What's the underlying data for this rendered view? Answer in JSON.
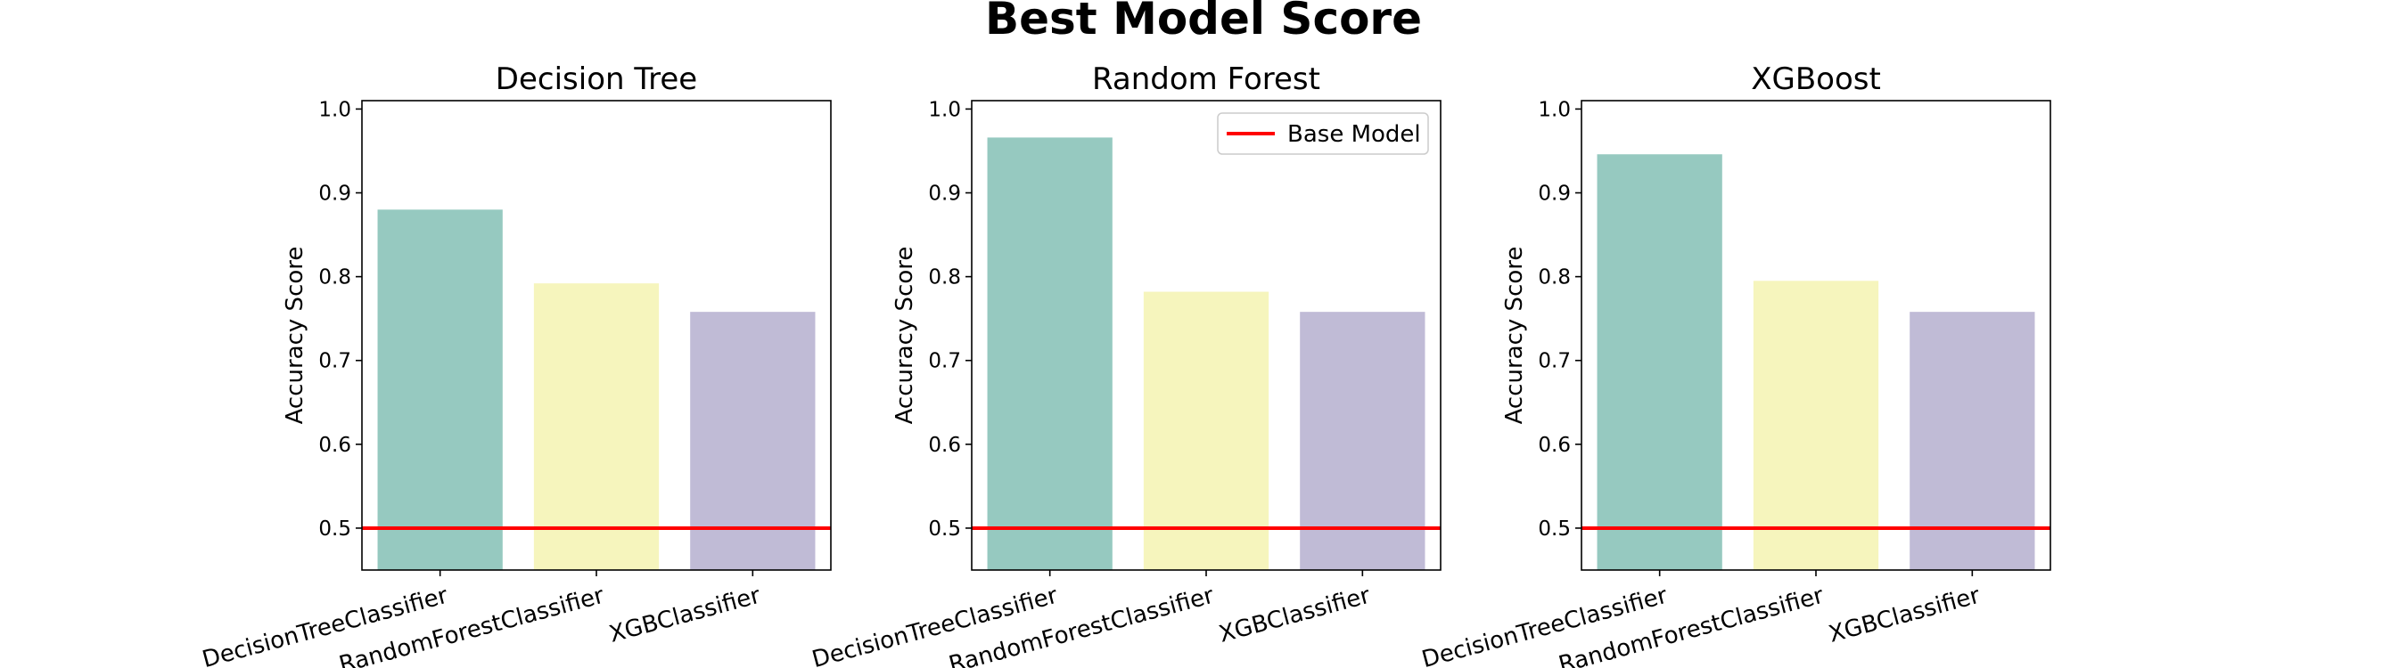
{
  "figure_title": "Best Model Score",
  "chart_data": [
    {
      "type": "bar",
      "title": "Decision Tree",
      "categories": [
        "DecisionTreeClassifier",
        "RandomForestClassifier",
        "XGBClassifier"
      ],
      "values": [
        0.88,
        0.792,
        0.758
      ],
      "colors": [
        "#96c9c0",
        "#f6f5bd",
        "#c0bbd6"
      ],
      "xlabel": "",
      "ylabel": "Accuracy Score",
      "ylim": [
        0.45,
        1.01
      ],
      "yticks": [
        "0.5",
        "0.6",
        "0.7",
        "0.8",
        "0.9",
        "1.0"
      ],
      "reference_line": {
        "value": 0.5,
        "color": "#ff0000"
      },
      "legend": null
    },
    {
      "type": "bar",
      "title": "Random Forest",
      "categories": [
        "DecisionTreeClassifier",
        "RandomForestClassifier",
        "XGBClassifier"
      ],
      "values": [
        0.966,
        0.782,
        0.758
      ],
      "colors": [
        "#96c9c0",
        "#f6f5bd",
        "#c0bbd6"
      ],
      "xlabel": "",
      "ylabel": "Accuracy Score",
      "ylim": [
        0.45,
        1.01
      ],
      "yticks": [
        "0.5",
        "0.6",
        "0.7",
        "0.8",
        "0.9",
        "1.0"
      ],
      "reference_line": {
        "value": 0.5,
        "color": "#ff0000"
      },
      "legend": {
        "label": "Base Model",
        "position": "upper right"
      }
    },
    {
      "type": "bar",
      "title": "XGBoost",
      "categories": [
        "DecisionTreeClassifier",
        "RandomForestClassifier",
        "XGBClassifier"
      ],
      "values": [
        0.946,
        0.795,
        0.758
      ],
      "colors": [
        "#96c9c0",
        "#f6f5bd",
        "#c0bbd6"
      ],
      "xlabel": "",
      "ylabel": "Accuracy Score",
      "ylim": [
        0.45,
        1.01
      ],
      "yticks": [
        "0.5",
        "0.6",
        "0.7",
        "0.8",
        "0.9",
        "1.0"
      ],
      "reference_line": {
        "value": 0.5,
        "color": "#ff0000"
      },
      "legend": null
    }
  ]
}
